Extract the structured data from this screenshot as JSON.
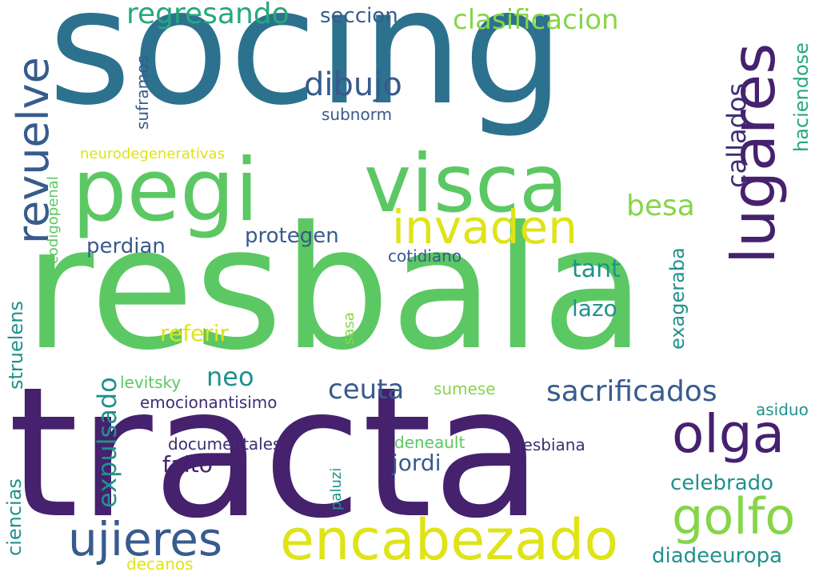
{
  "palette": {
    "dark_purple": "#46216e",
    "purple": "#3f2d74",
    "blue_dark": "#375b8d",
    "blue": "#2c728e",
    "teal": "#21918c",
    "green_teal": "#25a97c",
    "green": "#5cc863",
    "light_green": "#86d549",
    "yellow": "#dfe318"
  },
  "words": [
    {
      "text": "socing"
    },
    {
      "text": "resbala"
    },
    {
      "text": "tracta"
    },
    {
      "text": "pegi"
    },
    {
      "text": "visca"
    },
    {
      "text": "lugares"
    },
    {
      "text": "invaden"
    },
    {
      "text": "encabezado"
    },
    {
      "text": "olga"
    },
    {
      "text": "golfo"
    },
    {
      "text": "ujieres"
    },
    {
      "text": "revuelve"
    },
    {
      "text": "regresando"
    },
    {
      "text": "seccion"
    },
    {
      "text": "clasificacion"
    },
    {
      "text": "dibujo"
    },
    {
      "text": "callados"
    },
    {
      "text": "haciendose"
    },
    {
      "text": "besa"
    },
    {
      "text": "subnorm"
    },
    {
      "text": "suframos"
    },
    {
      "text": "neurodegenerativas"
    },
    {
      "text": "codigopenal"
    },
    {
      "text": "perdian"
    },
    {
      "text": "protegen"
    },
    {
      "text": "cotidiano"
    },
    {
      "text": "tant"
    },
    {
      "text": "lazo"
    },
    {
      "text": "exageraba"
    },
    {
      "text": "referir"
    },
    {
      "text": "sasa"
    },
    {
      "text": "struelens"
    },
    {
      "text": "expulsado"
    },
    {
      "text": "levitsky"
    },
    {
      "text": "neo"
    },
    {
      "text": "ceuta"
    },
    {
      "text": "sacrificados"
    },
    {
      "text": "sumese"
    },
    {
      "text": "emocionantisimo"
    },
    {
      "text": "asiduo"
    },
    {
      "text": "documentales"
    },
    {
      "text": "deneault"
    },
    {
      "text": "lesbiana"
    },
    {
      "text": "falto"
    },
    {
      "text": "jordi"
    },
    {
      "text": "paluzi"
    },
    {
      "text": "celebrado"
    },
    {
      "text": "ciencias"
    },
    {
      "text": "diadeeuropa"
    },
    {
      "text": "decanos"
    }
  ]
}
